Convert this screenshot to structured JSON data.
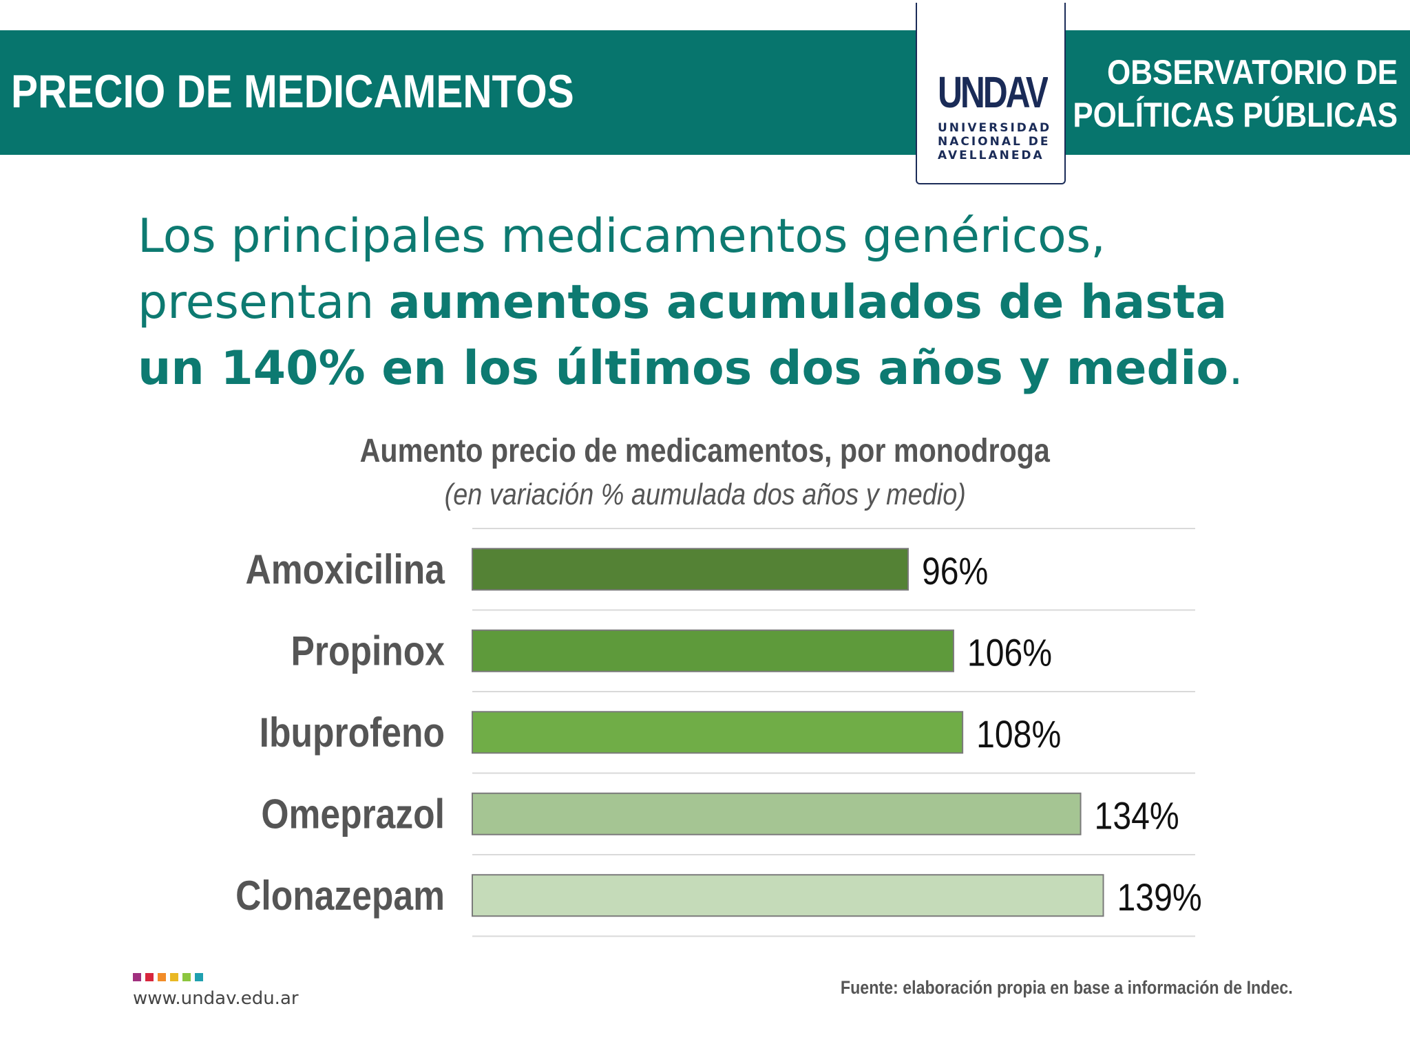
{
  "header": {
    "title": "PRECIO DE MEDICAMENTOS",
    "observatorio_line1": "OBSERVATORIO DE",
    "observatorio_line2": "POLÍTICAS PÚBLICAS",
    "logo": {
      "mark": "UNDAV",
      "line1": "UNIVERSIDAD",
      "line2": "NACIONAL DE",
      "line3": "AVELLANEDA"
    }
  },
  "headline": {
    "part1": "Los principales medicamentos genéricos,",
    "part2": "presentan ",
    "bold": "aumentos acumulados de hasta un 140% en los últimos dos años y medio",
    "end": "."
  },
  "chart_data": {
    "type": "bar",
    "orientation": "horizontal",
    "title": "Aumento precio de medicamentos, por monodroga",
    "subtitle": "(en variación % aumulada dos años y medio)",
    "categories": [
      "Amoxicilina",
      "Propinox",
      "Ibuprofeno",
      "Omeprazol",
      "Clonazepam"
    ],
    "values": [
      96,
      106,
      108,
      134,
      139
    ],
    "value_labels": [
      "96%",
      "106%",
      "108%",
      "134%",
      "139%"
    ],
    "colors": [
      "#548235",
      "#5e9a3b",
      "#70ad47",
      "#a5c593",
      "#c5dbb9"
    ],
    "grid": true
  },
  "footer": {
    "site": "www.undav.edu.ar",
    "source": "Fuente: elaboración propia en base a información de Indec.",
    "dot_colors": [
      "#a0307f",
      "#d7263d",
      "#f28c28",
      "#e9b824",
      "#8cc63f",
      "#1fa0b0"
    ]
  }
}
